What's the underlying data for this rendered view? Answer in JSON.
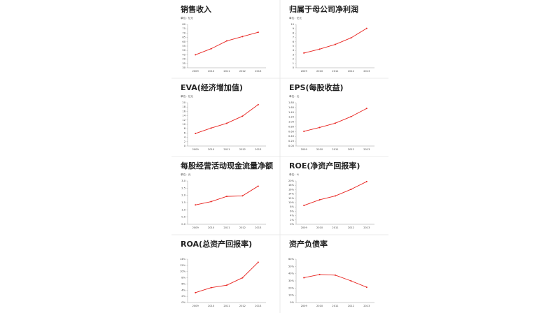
{
  "chart_data": [
    {
      "type": "line",
      "title": "销售收入",
      "y_label": "单位：亿元",
      "categories": [
        "2009",
        "2010",
        "2011",
        "2012",
        "2013"
      ],
      "color": "#e8231f",
      "values": [
        45,
        52,
        61,
        66,
        71
      ],
      "ylim": [
        30,
        80
      ],
      "yticks": [
        30,
        35,
        40,
        45,
        50,
        55,
        60,
        65,
        70,
        75,
        80
      ]
    },
    {
      "type": "line",
      "title": "归属于母公司净利润",
      "y_label": "单位：亿元",
      "categories": [
        "2009",
        "2010",
        "2011",
        "2012",
        "2013"
      ],
      "color": "#e8231f",
      "values": [
        3.4,
        4.3,
        5.4,
        6.9,
        9.1
      ],
      "ylim": [
        0,
        10
      ],
      "yticks": [
        0,
        1,
        2,
        3,
        4,
        5,
        6,
        7,
        8,
        9,
        10
      ]
    },
    {
      "type": "line",
      "title": "EVA(经济增加值)",
      "y_label": "单位：亿元",
      "categories": [
        "2009",
        "2010",
        "2011",
        "2012",
        "2013"
      ],
      "color": "#e8231f",
      "values": [
        5.8,
        8.3,
        10.5,
        13.8,
        19.1
      ],
      "ylim": [
        0,
        20
      ],
      "yticks": [
        0,
        2,
        4,
        6,
        8,
        10,
        12,
        14,
        16,
        18,
        20
      ]
    },
    {
      "type": "line",
      "title": "EPS(每股收益)",
      "y_label": "单位：元",
      "categories": [
        "2009",
        "2010",
        "2011",
        "2012",
        "2013"
      ],
      "color": "#e8231f",
      "values": [
        0.61,
        0.77,
        0.95,
        1.22,
        1.56
      ],
      "ylim": [
        0,
        1.8
      ],
      "yticks": [
        {
          "value": 0,
          "label": "0.00"
        },
        {
          "value": 0.2,
          "label": "0.20"
        },
        {
          "value": 0.4,
          "label": "0.40"
        },
        {
          "value": 0.6,
          "label": "0.60"
        },
        {
          "value": 0.8,
          "label": "0.80"
        },
        {
          "value": 1,
          "label": "1.00"
        },
        {
          "value": 1.2,
          "label": "1.20"
        },
        {
          "value": 1.4,
          "label": "1.40"
        },
        {
          "value": 1.6,
          "label": "1.60"
        },
        {
          "value": 1.8,
          "label": "1.80"
        }
      ]
    },
    {
      "type": "line",
      "title": "每股经营活动现金流量净额",
      "y_label": "单位：元",
      "categories": [
        "2009",
        "2010",
        "2011",
        "2012",
        "2013"
      ],
      "color": "#e8231f",
      "values": [
        1.34,
        1.57,
        1.93,
        1.97,
        2.64
      ],
      "ylim": [
        0,
        3
      ],
      "yticks": [
        {
          "value": 0,
          "label": "0.0"
        },
        {
          "value": 0.5,
          "label": "0.5"
        },
        {
          "value": 1,
          "label": "1.0"
        },
        {
          "value": 1.5,
          "label": "1.5"
        },
        {
          "value": 2,
          "label": "2.0"
        },
        {
          "value": 2.5,
          "label": "2.5"
        },
        {
          "value": 3,
          "label": "3.0"
        }
      ]
    },
    {
      "type": "line",
      "title": "ROE(净资产回报率)",
      "y_label": "单位：%",
      "categories": [
        "2009",
        "2010",
        "2011",
        "2012",
        "2013"
      ],
      "color": "#e8231f",
      "values": [
        8.7,
        11.3,
        13.1,
        16.1,
        19.7
      ],
      "ylim": [
        0,
        20
      ],
      "yticks": [
        {
          "value": 0,
          "label": "0%"
        },
        {
          "value": 2,
          "label": "2%"
        },
        {
          "value": 4,
          "label": "4%"
        },
        {
          "value": 6,
          "label": "6%"
        },
        {
          "value": 8,
          "label": "8%"
        },
        {
          "value": 10,
          "label": "10%"
        },
        {
          "value": 12,
          "label": "12%"
        },
        {
          "value": 14,
          "label": "14%"
        },
        {
          "value": 16,
          "label": "16%"
        },
        {
          "value": 18,
          "label": "18%"
        },
        {
          "value": 20,
          "label": "20%"
        }
      ]
    },
    {
      "type": "line",
      "title": "ROA(总资产回报率)",
      "categories": [
        "2009",
        "2010",
        "2011",
        "2012",
        "2013"
      ],
      "color": "#e8231f",
      "values": [
        3.2,
        4.8,
        5.6,
        8.0,
        13.0
      ],
      "ylim": [
        0,
        14
      ],
      "yticks": [
        {
          "value": 0,
          "label": "0%"
        },
        {
          "value": 2,
          "label": "2%"
        },
        {
          "value": 4,
          "label": "4%"
        },
        {
          "value": 6,
          "label": "6%"
        },
        {
          "value": 8,
          "label": "8%"
        },
        {
          "value": 10,
          "label": "10%"
        },
        {
          "value": 12,
          "label": "12%"
        },
        {
          "value": 14,
          "label": "14%"
        }
      ]
    },
    {
      "type": "line",
      "title": "资产负债率",
      "categories": [
        "2009",
        "2010",
        "2011",
        "2012",
        "2013"
      ],
      "color": "#e8231f",
      "values": [
        34.4,
        38.8,
        37.9,
        30,
        21.2
      ],
      "ylim": [
        0,
        60
      ],
      "yticks": [
        {
          "value": 0,
          "label": "0%"
        },
        {
          "value": 10,
          "label": "10%"
        },
        {
          "value": 20,
          "label": "20%"
        },
        {
          "value": 30,
          "label": "30%"
        },
        {
          "value": 40,
          "label": "40%"
        },
        {
          "value": 50,
          "label": "50%"
        },
        {
          "value": 60,
          "label": "60%"
        }
      ]
    }
  ]
}
